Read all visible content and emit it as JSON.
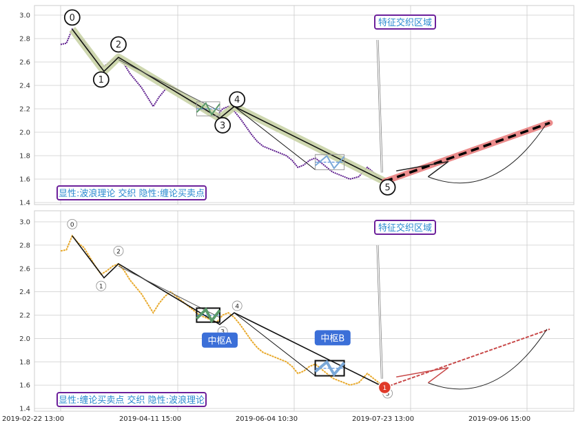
{
  "chart_data": [
    {
      "type": "line",
      "ylim": [
        1.4,
        3.0
      ],
      "yticks": [
        "1.4",
        "1.6",
        "1.8",
        "2.0",
        "2.2",
        "2.4",
        "2.6",
        "2.8",
        "3.0"
      ],
      "annotation": "特征交织区域",
      "legend": "显性:波浪理论 交织 隐性:缠论买卖点",
      "wave_labels": [
        "0",
        "1",
        "2",
        "3",
        "4",
        "5"
      ],
      "series": [
        {
          "values": [
            [
              0,
              2.75
            ],
            [
              2,
              2.76
            ],
            [
              4,
              2.88
            ],
            [
              6,
              2.82
            ],
            [
              8,
              2.78
            ],
            [
              10,
              2.7
            ],
            [
              12,
              2.62
            ],
            [
              14,
              2.55
            ],
            [
              16,
              2.58
            ],
            [
              18,
              2.62
            ],
            [
              20,
              2.64
            ],
            [
              22,
              2.58
            ],
            [
              24,
              2.5
            ],
            [
              26,
              2.44
            ],
            [
              28,
              2.38
            ],
            [
              30,
              2.3
            ],
            [
              32,
              2.22
            ],
            [
              34,
              2.3
            ],
            [
              36,
              2.36
            ],
            [
              38,
              2.4
            ],
            [
              40,
              2.36
            ],
            [
              42,
              2.32
            ],
            [
              44,
              2.28
            ],
            [
              46,
              2.24
            ],
            [
              48,
              2.2
            ],
            [
              50,
              2.18
            ],
            [
              52,
              2.16
            ],
            [
              54,
              2.14
            ],
            [
              56,
              2.2
            ],
            [
              58,
              2.22
            ],
            [
              60,
              2.18
            ],
            [
              62,
              2.12
            ],
            [
              64,
              2.05
            ],
            [
              66,
              1.98
            ],
            [
              68,
              1.92
            ],
            [
              70,
              1.88
            ],
            [
              72,
              1.86
            ],
            [
              74,
              1.84
            ],
            [
              76,
              1.82
            ],
            [
              78,
              1.8
            ],
            [
              80,
              1.76
            ],
            [
              82,
              1.7
            ],
            [
              84,
              1.72
            ],
            [
              86,
              1.76
            ],
            [
              88,
              1.78
            ],
            [
              90,
              1.74
            ],
            [
              92,
              1.7
            ],
            [
              94,
              1.66
            ],
            [
              96,
              1.64
            ],
            [
              98,
              1.62
            ],
            [
              100,
              1.6
            ],
            [
              103,
              1.62
            ],
            [
              106,
              1.7
            ],
            [
              108,
              1.66
            ],
            [
              110,
              1.62
            ],
            [
              112,
              1.58
            ]
          ]
        }
      ]
    },
    {
      "type": "line",
      "ylim": [
        1.4,
        3.0
      ],
      "yticks": [
        "1.4",
        "1.6",
        "1.8",
        "2.0",
        "2.2",
        "2.4",
        "2.6",
        "2.8",
        "3.0"
      ],
      "annotation": "特征交织区域",
      "legend": "显性:缠论买卖点 交织 隐性:波浪理论",
      "wave_labels": [
        "0",
        "1",
        "2",
        "3",
        "4",
        "5"
      ],
      "zhongshu": [
        "中枢A",
        "中枢B"
      ],
      "point_label": "1",
      "x_tick_labels": [
        "2019-02-22 13:00",
        "2019-04-11 15:00",
        "2019-06-04 10:30",
        "2019-07-23 13:00",
        "2019-09-06 15:00"
      ],
      "series": [
        {
          "values": [
            [
              0,
              2.75
            ],
            [
              2,
              2.76
            ],
            [
              4,
              2.88
            ],
            [
              6,
              2.82
            ],
            [
              8,
              2.78
            ],
            [
              10,
              2.7
            ],
            [
              12,
              2.62
            ],
            [
              14,
              2.55
            ],
            [
              16,
              2.58
            ],
            [
              18,
              2.62
            ],
            [
              20,
              2.64
            ],
            [
              22,
              2.58
            ],
            [
              24,
              2.5
            ],
            [
              26,
              2.44
            ],
            [
              28,
              2.38
            ],
            [
              30,
              2.3
            ],
            [
              32,
              2.22
            ],
            [
              34,
              2.3
            ],
            [
              36,
              2.36
            ],
            [
              38,
              2.4
            ],
            [
              40,
              2.36
            ],
            [
              42,
              2.32
            ],
            [
              44,
              2.28
            ],
            [
              46,
              2.24
            ],
            [
              48,
              2.2
            ],
            [
              50,
              2.18
            ],
            [
              52,
              2.16
            ],
            [
              54,
              2.14
            ],
            [
              56,
              2.2
            ],
            [
              58,
              2.22
            ],
            [
              60,
              2.18
            ],
            [
              62,
              2.12
            ],
            [
              64,
              2.05
            ],
            [
              66,
              1.98
            ],
            [
              68,
              1.92
            ],
            [
              70,
              1.88
            ],
            [
              72,
              1.86
            ],
            [
              74,
              1.84
            ],
            [
              76,
              1.82
            ],
            [
              78,
              1.8
            ],
            [
              80,
              1.76
            ],
            [
              82,
              1.7
            ],
            [
              84,
              1.72
            ],
            [
              86,
              1.76
            ],
            [
              88,
              1.78
            ],
            [
              90,
              1.74
            ],
            [
              92,
              1.7
            ],
            [
              94,
              1.66
            ],
            [
              96,
              1.64
            ],
            [
              98,
              1.62
            ],
            [
              100,
              1.6
            ],
            [
              103,
              1.62
            ],
            [
              106,
              1.7
            ],
            [
              108,
              1.66
            ],
            [
              110,
              1.62
            ],
            [
              112,
              1.58
            ]
          ]
        }
      ]
    }
  ],
  "colors": {
    "price_top": "#5b1a8c",
    "price_bottom": "#e8a92b",
    "grid": "#cccccc",
    "annotation_border": "#6b1f9a",
    "annotation_text": "#2a8ad0",
    "zhongshu_label_bg": "#3b6fd8",
    "forecast": "#e87878"
  }
}
